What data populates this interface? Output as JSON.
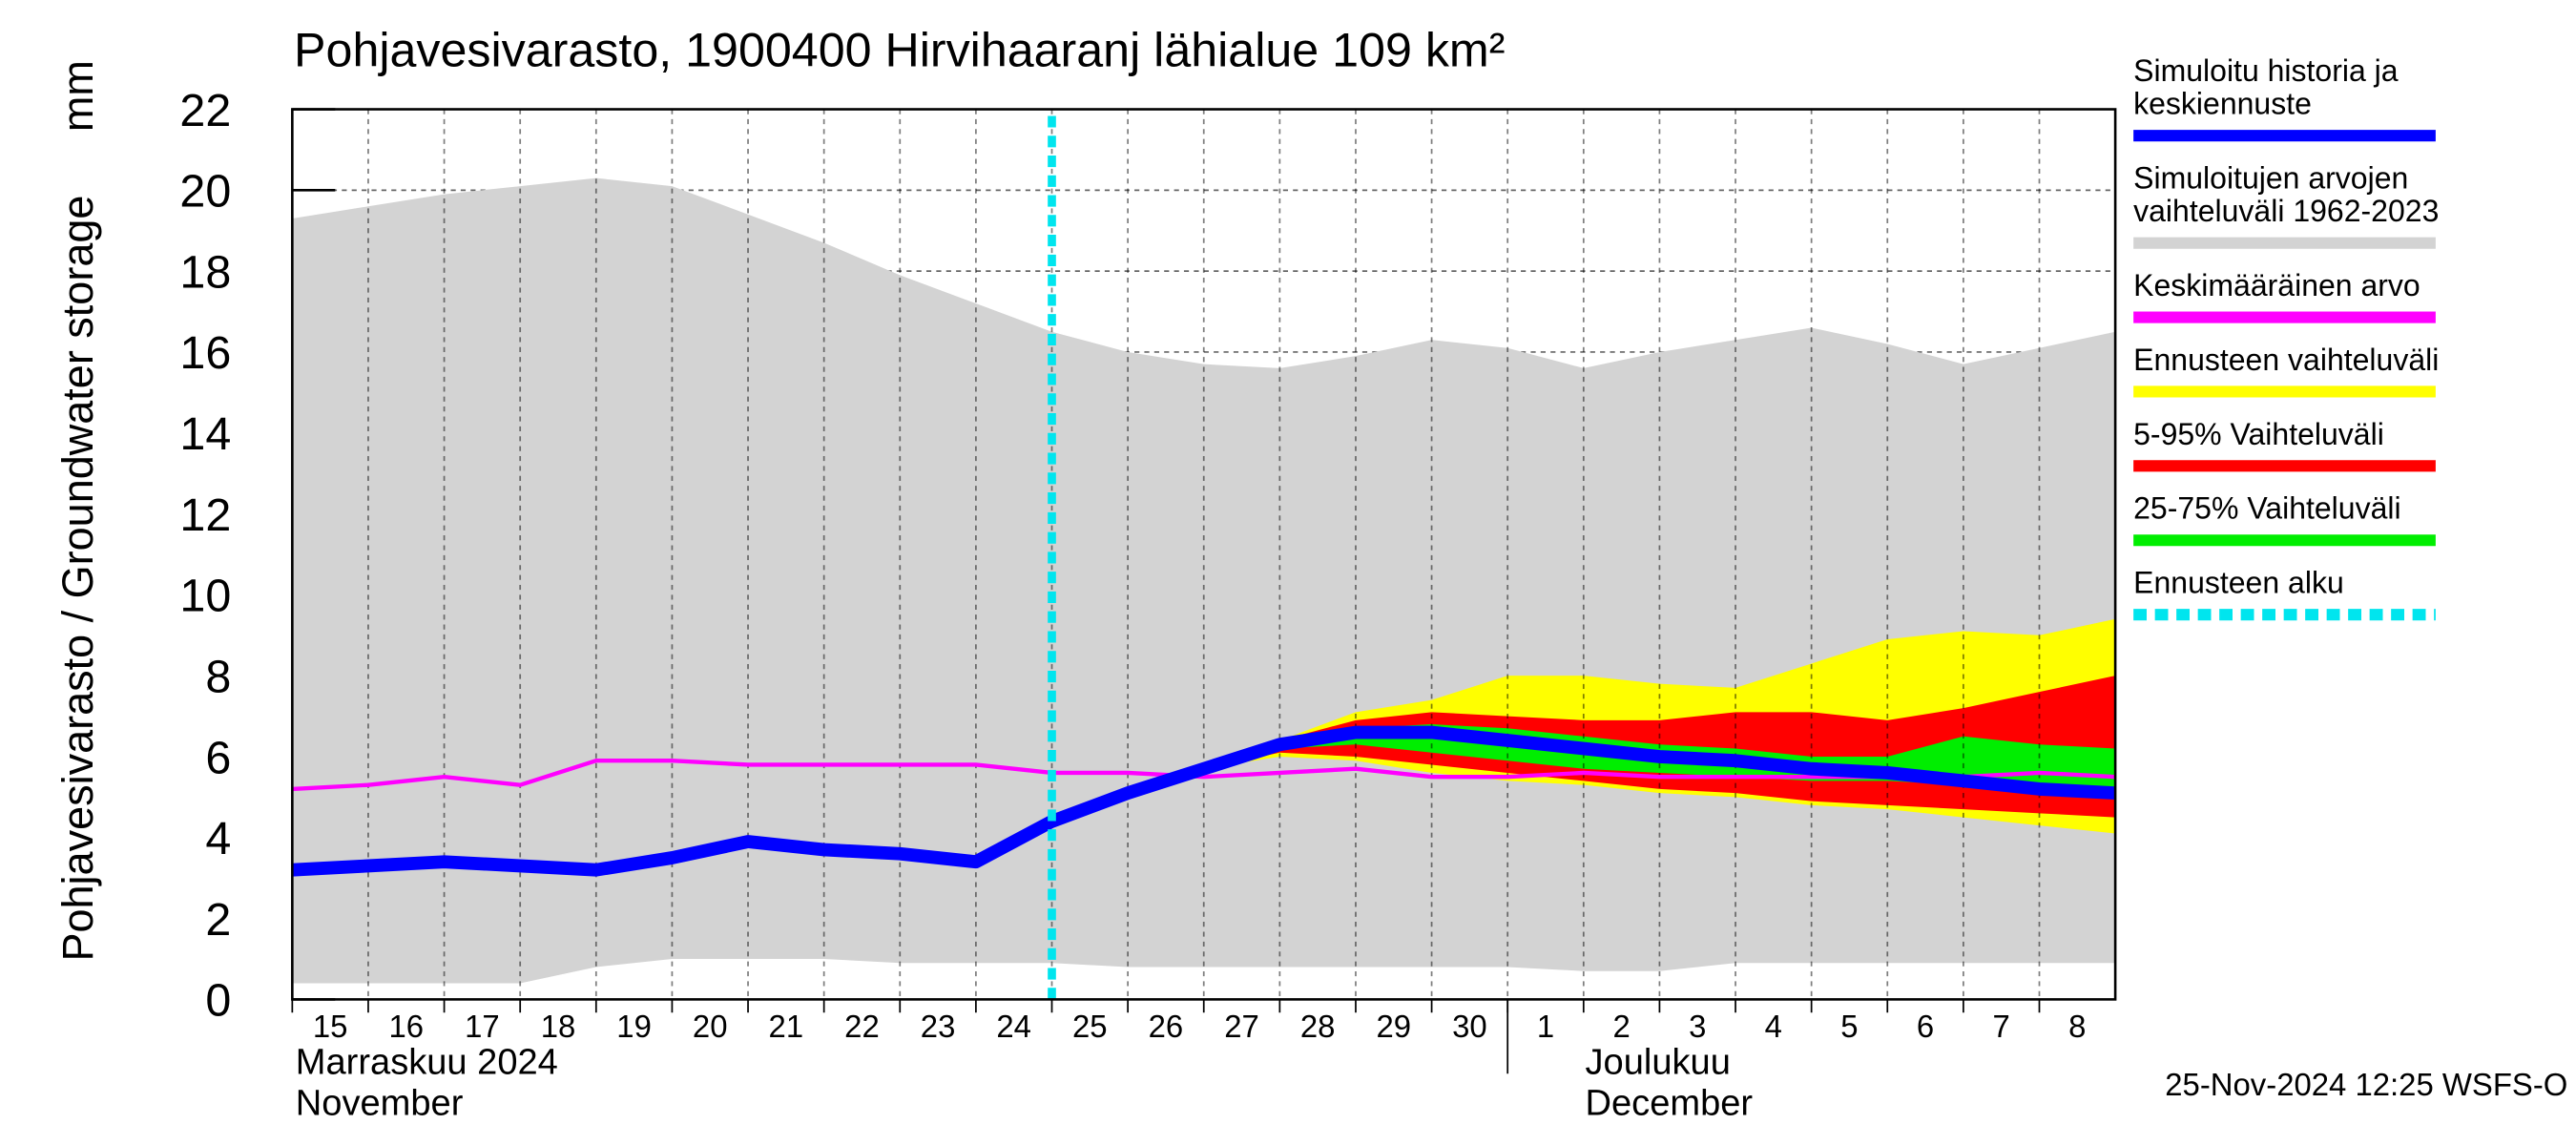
{
  "chart_data": {
    "type": "line",
    "title": "Pohjavesivarasto, 1900400 Hirvihaaranj lähialue 109 km²",
    "y_label": "Pohjavesivarasto / Groundwater storage",
    "y_unit": "mm",
    "categories": [
      "15",
      "16",
      "17",
      "18",
      "19",
      "20",
      "21",
      "22",
      "23",
      "24",
      "25",
      "26",
      "27",
      "28",
      "29",
      "30",
      "1",
      "2",
      "3",
      "4",
      "5",
      "6",
      "7",
      "8",
      null
    ],
    "month_labels": [
      {
        "index": 0,
        "lines": [
          "Marraskuu 2024",
          "November"
        ]
      },
      {
        "index": 16,
        "lines": [
          "Joulukuu",
          "December"
        ]
      }
    ],
    "ylim": [
      0,
      22
    ],
    "yticks": [
      0,
      2,
      4,
      6,
      8,
      10,
      12,
      14,
      16,
      18,
      20,
      22
    ],
    "grid": true,
    "series": [
      {
        "name": "Simuloitu historia ja\nkeskiennuste",
        "color": "#0000ff",
        "kind": "line",
        "width": 8,
        "values": [
          3.2,
          3.3,
          3.4,
          3.3,
          3.2,
          3.5,
          3.9,
          3.7,
          3.6,
          3.4,
          4.4,
          5.1,
          5.7,
          6.3,
          6.6,
          6.6,
          6.4,
          6.2,
          6.0,
          5.9,
          5.7,
          5.6,
          5.4,
          5.2,
          5.1
        ]
      },
      {
        "name": "Simuloitujen arvojen\nvaihteluväli 1962-2023",
        "color": "#d3d3d3",
        "kind": "band",
        "values": [
          19.3,
          19.6,
          19.9,
          20.1,
          20.3,
          20.1,
          19.4,
          18.7,
          17.9,
          17.2,
          16.5,
          16.0,
          15.7,
          15.6,
          15.9,
          16.3,
          16.1,
          15.6,
          16.0,
          16.3,
          16.6,
          16.2,
          15.7,
          16.1,
          16.5
        ],
        "lower": [
          0.4,
          0.4,
          0.4,
          0.4,
          0.8,
          1.0,
          1.0,
          1.0,
          0.9,
          0.9,
          0.9,
          0.8,
          0.8,
          0.8,
          0.8,
          0.8,
          0.8,
          0.7,
          0.7,
          0.9,
          0.9,
          0.9,
          0.9,
          0.9,
          0.9
        ]
      },
      {
        "name": "Keskimääräinen arvo",
        "color": "#ff00ff",
        "kind": "line",
        "width": 2.5,
        "values": [
          5.2,
          5.3,
          5.5,
          5.3,
          5.9,
          5.9,
          5.8,
          5.8,
          5.8,
          5.8,
          5.6,
          5.6,
          5.5,
          5.6,
          5.7,
          5.5,
          5.5,
          5.6,
          5.5,
          5.5,
          5.5,
          5.5,
          5.5,
          5.6,
          5.5
        ]
      },
      {
        "name": "Ennusteen vaihteluväli",
        "color": "#ffff00",
        "kind": "band",
        "values": [
          null,
          null,
          null,
          null,
          null,
          null,
          null,
          null,
          null,
          null,
          null,
          null,
          5.7,
          6.4,
          7.1,
          7.4,
          8.0,
          8.0,
          7.8,
          7.7,
          8.3,
          8.9,
          9.1,
          9.0,
          9.4
        ],
        "lower": [
          null,
          null,
          null,
          null,
          null,
          null,
          null,
          null,
          null,
          null,
          null,
          null,
          5.7,
          6.0,
          5.9,
          5.6,
          5.4,
          5.3,
          5.1,
          5.0,
          4.8,
          4.7,
          4.5,
          4.3,
          4.1
        ]
      },
      {
        "name": "5-95% Vaihteluväli",
        "color": "#ff0000",
        "kind": "band",
        "values": [
          null,
          null,
          null,
          null,
          null,
          null,
          null,
          null,
          null,
          null,
          null,
          null,
          5.7,
          6.4,
          6.9,
          7.1,
          7.0,
          6.9,
          6.9,
          7.1,
          7.1,
          6.9,
          7.2,
          7.6,
          8.0
        ],
        "lower": [
          null,
          null,
          null,
          null,
          null,
          null,
          null,
          null,
          null,
          null,
          null,
          null,
          5.7,
          6.1,
          6.0,
          5.8,
          5.6,
          5.4,
          5.2,
          5.1,
          4.9,
          4.8,
          4.7,
          4.6,
          4.5
        ]
      },
      {
        "name": "25-75% Vaihteluväli",
        "color": "#00ee00",
        "kind": "band",
        "values": [
          null,
          null,
          null,
          null,
          null,
          null,
          null,
          null,
          null,
          null,
          null,
          null,
          5.7,
          6.3,
          6.7,
          6.8,
          6.7,
          6.5,
          6.3,
          6.2,
          6.0,
          6.0,
          6.5,
          6.3,
          6.2
        ],
        "lower": [
          null,
          null,
          null,
          null,
          null,
          null,
          null,
          null,
          null,
          null,
          null,
          null,
          5.7,
          6.2,
          6.3,
          6.1,
          5.9,
          5.7,
          5.6,
          5.5,
          5.4,
          5.4,
          5.3,
          5.2,
          5.1
        ]
      }
    ],
    "forecast_start": {
      "name": "Ennusteen alku",
      "color": "#00e5ee",
      "x": 10
    },
    "footer": "25-Nov-2024 12:25 WSFS-O"
  }
}
